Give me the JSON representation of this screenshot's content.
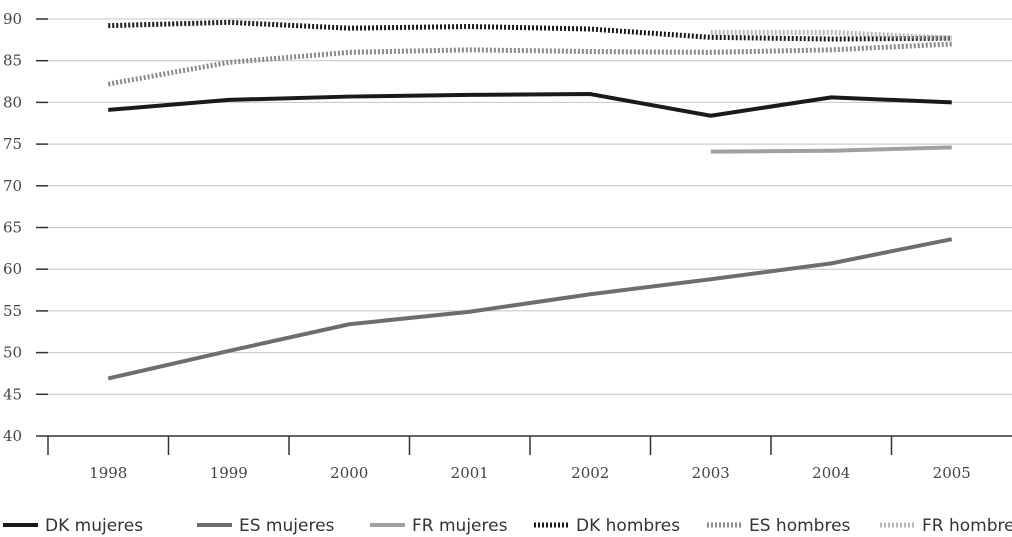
{
  "chart_data": {
    "type": "line",
    "title": "",
    "xlabel": "",
    "ylabel": "",
    "categories": [
      "1998",
      "1999",
      "2000",
      "2001",
      "2002",
      "2003",
      "2004",
      "2005"
    ],
    "ylim": [
      40,
      90
    ],
    "yticks": [
      "40",
      "45",
      "50",
      "55",
      "60",
      "65",
      "70",
      "75",
      "80",
      "85",
      "90"
    ],
    "grid": "horizontal",
    "legend_position": "bottom",
    "series": [
      {
        "name": "DK mujeres",
        "color": "#1a1a1a",
        "style": "solid",
        "values": [
          79.1,
          80.3,
          80.7,
          80.9,
          81.0,
          78.4,
          80.6,
          80.0
        ]
      },
      {
        "name": "ES mujeres",
        "color": "#6e6e6e",
        "style": "solid",
        "values": [
          46.9,
          50.2,
          53.4,
          54.9,
          57.0,
          58.8,
          60.7,
          63.6
        ]
      },
      {
        "name": "FR mujeres",
        "color": "#a0a0a0",
        "style": "solid",
        "values": [
          null,
          null,
          null,
          null,
          null,
          74.1,
          74.2,
          74.6
        ]
      },
      {
        "name": "DK hombres",
        "color": "#1a1a1a",
        "style": "dotted",
        "values": [
          89.2,
          89.6,
          88.9,
          89.1,
          88.8,
          87.8,
          87.6,
          87.7
        ]
      },
      {
        "name": "ES hombres",
        "color": "#8a8a8a",
        "style": "dotted",
        "values": [
          82.2,
          84.8,
          86.0,
          86.3,
          86.1,
          86.0,
          86.3,
          87.0
        ]
      },
      {
        "name": "FR hombres",
        "color": "#b9b9b9",
        "style": "dotted",
        "values": [
          null,
          null,
          null,
          null,
          null,
          88.4,
          88.4,
          87.7
        ]
      }
    ]
  }
}
